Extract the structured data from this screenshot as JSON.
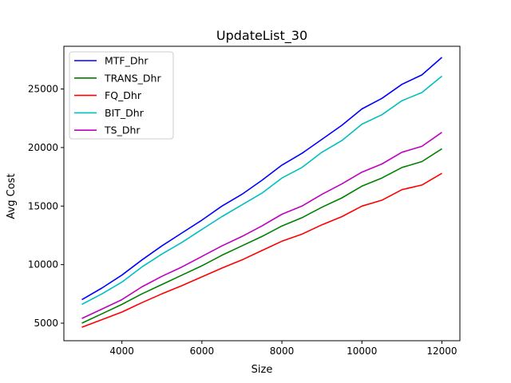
{
  "chart_data": {
    "type": "line",
    "title": "UpdateList_30",
    "xlabel": "Size",
    "ylabel": "Avg Cost",
    "xlim": [
      2550,
      12450
    ],
    "ylim": [
      3500,
      28650
    ],
    "x_ticks": [
      4000,
      6000,
      8000,
      10000,
      12000
    ],
    "x_tick_labels": [
      "4000",
      "6000",
      "8000",
      "10000",
      "12000"
    ],
    "y_ticks": [
      5000,
      10000,
      15000,
      20000,
      25000
    ],
    "y_tick_labels": [
      "5000",
      "10000",
      "15000",
      "20000",
      "25000"
    ],
    "grid": false,
    "legend_position": "top-left",
    "x": [
      3000,
      3500,
      4000,
      4500,
      5000,
      5500,
      6000,
      6500,
      7000,
      7500,
      8000,
      8500,
      9000,
      9500,
      10000,
      10500,
      11000,
      11500,
      12000
    ],
    "series": [
      {
        "name": "MTF_Dhr",
        "color": "#0000ff",
        "values": [
          7000,
          8000,
          9100,
          10400,
          11600,
          12700,
          13800,
          15000,
          16000,
          17200,
          18500,
          19500,
          20700,
          21900,
          23300,
          24200,
          25400,
          26200,
          27700
        ]
      },
      {
        "name": "TRANS_Dhr",
        "color": "#008000",
        "values": [
          5000,
          5800,
          6600,
          7500,
          8300,
          9100,
          9900,
          10800,
          11600,
          12400,
          13300,
          14000,
          14900,
          15700,
          16700,
          17400,
          18300,
          18800,
          19900
        ]
      },
      {
        "name": "FQ_Dhr",
        "color": "#ff0000",
        "values": [
          4650,
          5300,
          5950,
          6750,
          7500,
          8200,
          8950,
          9700,
          10400,
          11200,
          12000,
          12600,
          13400,
          14100,
          15000,
          15500,
          16400,
          16800,
          17800
        ]
      },
      {
        "name": "BIT_Dhr",
        "color": "#00bfbf",
        "values": [
          6600,
          7500,
          8500,
          9800,
          10900,
          11900,
          13000,
          14100,
          15100,
          16100,
          17400,
          18300,
          19600,
          20600,
          22000,
          22800,
          24000,
          24700,
          26100
        ]
      },
      {
        "name": "TS_Dhr",
        "color": "#bf00bf",
        "values": [
          5400,
          6200,
          7000,
          8100,
          9000,
          9800,
          10700,
          11600,
          12400,
          13300,
          14300,
          15000,
          16000,
          16900,
          17900,
          18600,
          19600,
          20100,
          21300
        ]
      }
    ]
  }
}
